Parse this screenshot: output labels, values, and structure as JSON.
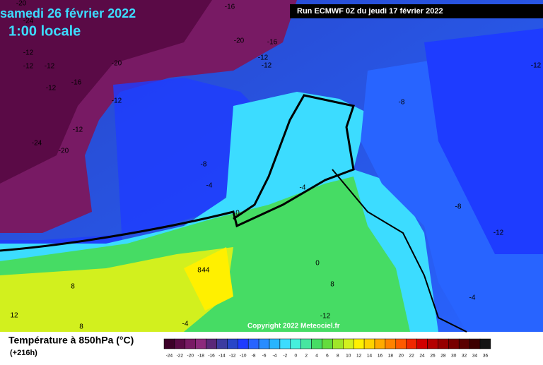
{
  "header": {
    "date": "samedi 26 février 2022",
    "time": "1:00 locale",
    "run": "Run ECMWF 0Z du jeudi 17 février 2022"
  },
  "map": {
    "contour_labels": [
      "-20",
      "-16",
      "-24",
      "-12",
      "-12",
      "-12",
      "-16",
      "-20",
      "-20",
      "-12",
      "-12",
      "-16",
      "-12",
      "-12",
      "-24",
      "-20",
      "-12",
      "-8",
      "-8",
      "-4",
      "-4",
      "0",
      "-4",
      "-8",
      "-12",
      "-12",
      "4",
      "8",
      "8",
      "0",
      "8",
      "-4",
      "-4",
      "12",
      "-12",
      "8"
    ],
    "copyright": "Copyright 2022 Meteociel.fr"
  },
  "legend": {
    "title": "Température à 850hPa (°C)",
    "lead": "(+216h)",
    "ticks": [
      -24,
      -22,
      -20,
      -18,
      -16,
      -14,
      -12,
      -10,
      -8,
      -6,
      -4,
      -2,
      0,
      2,
      4,
      6,
      8,
      10,
      12,
      14,
      16,
      18,
      20,
      22,
      24,
      26,
      28,
      30,
      32,
      34,
      36
    ],
    "colors": [
      "#3c0028",
      "#5a0a46",
      "#781a64",
      "#8c2a7c",
      "#5a2878",
      "#3c3ca0",
      "#2846c8",
      "#1e3cff",
      "#2864ff",
      "#288cff",
      "#28b4ff",
      "#3cdcff",
      "#46f0dc",
      "#46e6a0",
      "#46dc64",
      "#64dc3c",
      "#a0e628",
      "#d2f01e",
      "#fff000",
      "#ffd200",
      "#ffaa00",
      "#ff8200",
      "#ff5a00",
      "#f02800",
      "#d20000",
      "#b40000",
      "#960000",
      "#780000",
      "#5a0000",
      "#3c0000",
      "#141414"
    ]
  }
}
